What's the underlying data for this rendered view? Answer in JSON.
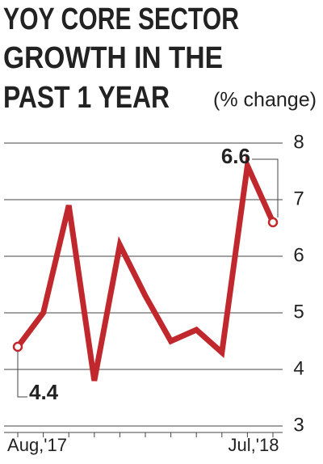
{
  "chart_data": {
    "type": "line",
    "title": [
      "YOY CORE SECTOR",
      "GROWTH IN THE",
      "PAST 1 YEAR"
    ],
    "subtitle": "(% change)",
    "categories": [
      "Aug,'17",
      null,
      null,
      null,
      null,
      null,
      null,
      null,
      null,
      null,
      "Jul,'18"
    ],
    "series": [
      {
        "name": "Core sector growth",
        "color": "#c0282d",
        "values": [
          4.4,
          5.0,
          6.9,
          3.8,
          6.2,
          5.3,
          4.5,
          4.7,
          4.3,
          7.6,
          6.6
        ],
        "value_labels": [
          "4.4",
          null,
          null,
          null,
          null,
          null,
          null,
          null,
          null,
          null,
          "6.6"
        ]
      }
    ],
    "ylim": [
      3,
      8
    ],
    "yticks": [
      3,
      4,
      5,
      6,
      7,
      8
    ],
    "grid": true
  }
}
